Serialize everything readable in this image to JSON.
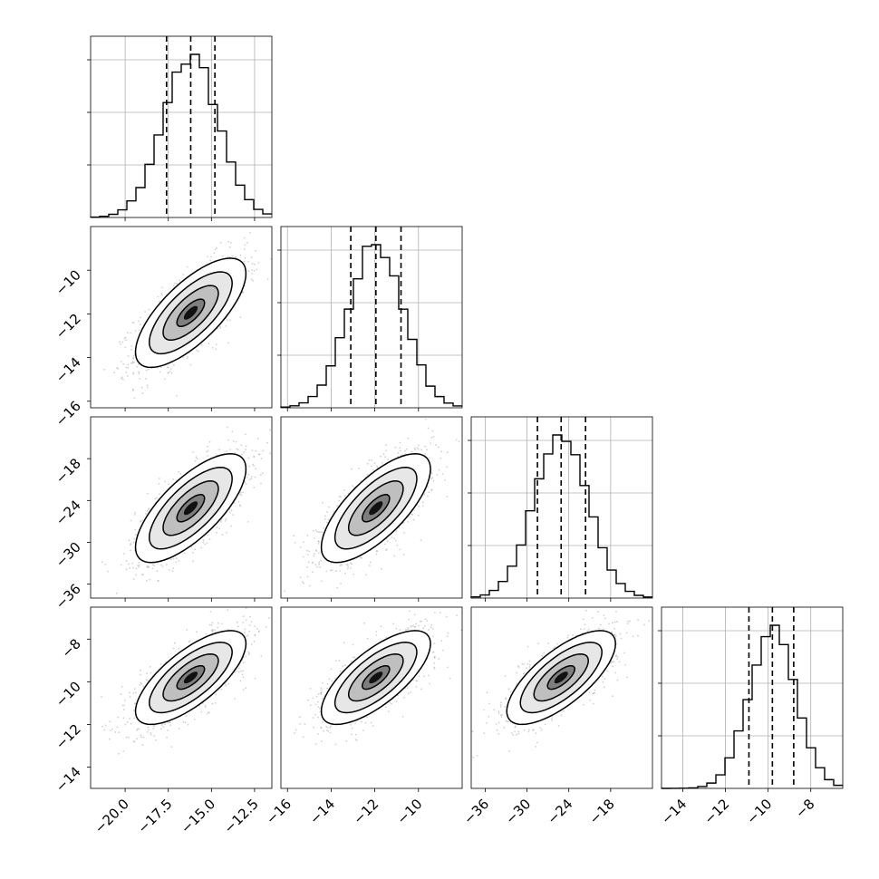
{
  "chart_data": {
    "type": "corner",
    "title": "",
    "parameters": [
      {
        "range": [
          -22.0,
          -11.5
        ],
        "mean": -16.2,
        "std": 1.6,
        "quantiles": [
          -17.6,
          -16.2,
          -14.8
        ],
        "ticks": [
          -20.0,
          -17.5,
          -15.0,
          -12.5
        ],
        "tick_labels": [
          "−20.0",
          "−17.5",
          "−15.0",
          "−12.5"
        ]
      },
      {
        "range": [
          -16.3,
          -8.0
        ],
        "mean": -11.95,
        "std": 1.25,
        "quantiles": [
          -13.1,
          -11.95,
          -10.8
        ],
        "ticks": [
          -16,
          -14,
          -12,
          -10
        ],
        "tick_labels": [
          "−16",
          "−14",
          "−12",
          "−10"
        ]
      },
      {
        "range": [
          -38.0,
          -12.0
        ],
        "mean": -25.1,
        "std": 3.9,
        "quantiles": [
          -28.5,
          -25.1,
          -21.6
        ],
        "ticks": [
          -36,
          -30,
          -24,
          -18
        ],
        "tick_labels": [
          "−36",
          "−30",
          "−24",
          "−18"
        ]
      },
      {
        "range": [
          -15.0,
          -6.5
        ],
        "mean": -9.8,
        "std": 1.1,
        "quantiles": [
          -10.9,
          -9.8,
          -8.8
        ],
        "ticks": [
          -14,
          -12,
          -10,
          -8
        ],
        "tick_labels": [
          "−14",
          "−12",
          "−10",
          "−8"
        ]
      }
    ],
    "correlation": 0.72,
    "contour_levels_sigma": [
      0.5,
      1.0,
      1.5,
      2.0
    ],
    "histogram_bins": 20,
    "samples_per_panel": 2600,
    "grid": true,
    "colors": {
      "line": "#000000",
      "grid": "#b0b0b0",
      "scatter": "#9a9a9a",
      "background": "#ffffff"
    }
  }
}
